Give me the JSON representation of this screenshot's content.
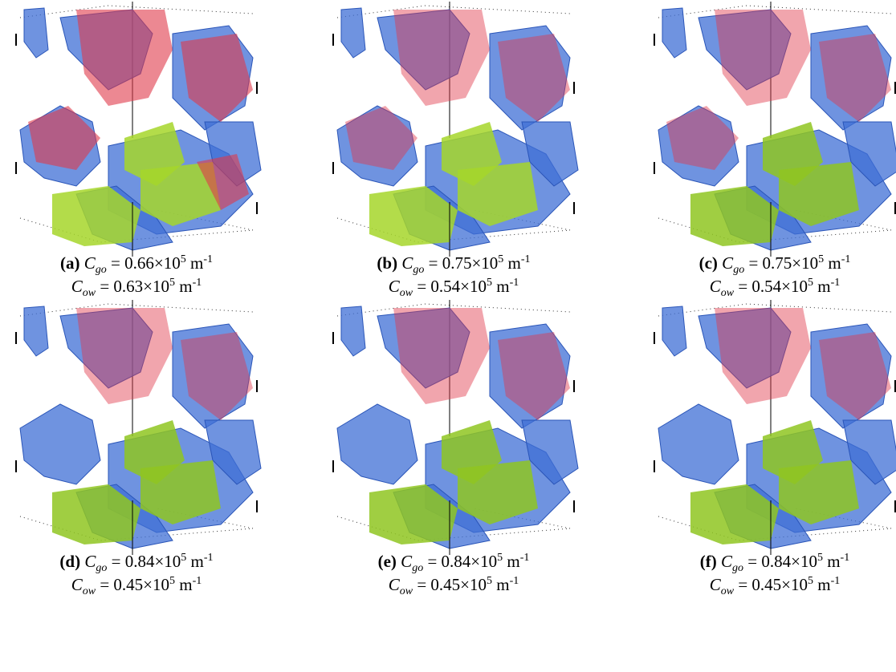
{
  "notation": {
    "symbol": "C",
    "go_subscript": "go",
    "ow_subscript": "ow",
    "equals": "=",
    "multiplier": "×10",
    "exponent": "5",
    "unit": "m",
    "unit_exponent": "-1"
  },
  "panels": [
    {
      "label": "(a)",
      "c_go": "0.66",
      "c_ow": "0.63"
    },
    {
      "label": "(b)",
      "c_go": "0.75",
      "c_ow": "0.54"
    },
    {
      "label": "(c)",
      "c_go": "0.75",
      "c_ow": "0.54"
    },
    {
      "label": "(d)",
      "c_go": "0.84",
      "c_ow": "0.45"
    },
    {
      "label": "(e)",
      "c_go": "0.84",
      "c_ow": "0.45"
    },
    {
      "label": "(f)",
      "c_go": "0.84",
      "c_ow": "0.45"
    }
  ]
}
